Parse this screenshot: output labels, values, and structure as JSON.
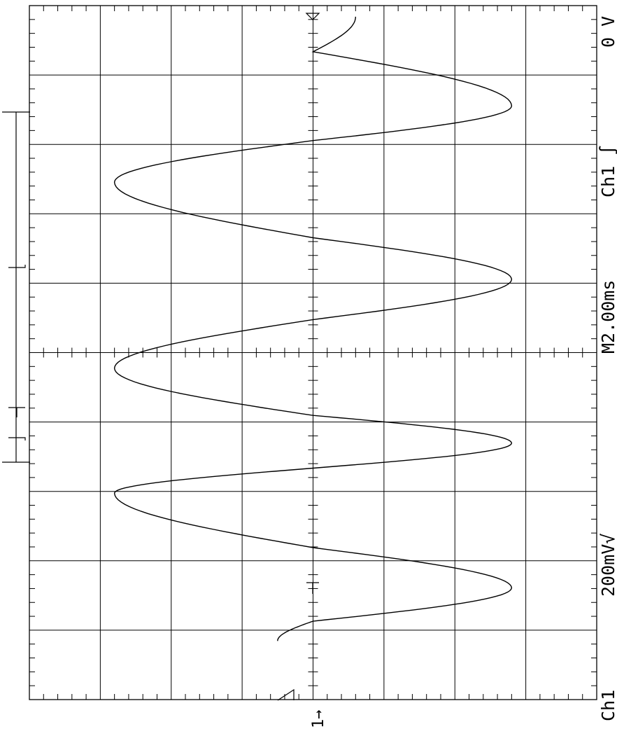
{
  "readouts": {
    "channel": "Ch1",
    "volts_per_div": "200mV√",
    "timebase": "M2.00ms",
    "trigger": "Ch1 ∫",
    "trigger_level": "0 V",
    "channel_marker": "1→"
  },
  "colors": {
    "trace": "#000000",
    "grid": "#000000",
    "background": "#ffffff"
  },
  "chart_data": {
    "type": "line",
    "title": "",
    "xlabel": "",
    "ylabel": "",
    "xlim": [
      -10,
      10
    ],
    "ylim": [
      -0.8,
      0.8
    ],
    "grid": true,
    "series": [
      {
        "x": [
          -8.31,
          -7.74,
          -6.78,
          -5.62,
          -4.05,
          -3.33,
          -2.61,
          -1.81,
          -0.45,
          0.95,
          2.11,
          3.31,
          4.91,
          6.11,
          7.11,
          8.67,
          9.68
        ],
        "y": [
          -0.1,
          0.0,
          0.56,
          0.0,
          -0.56,
          0.0,
          0.56,
          0.0,
          -0.56,
          0.0,
          0.56,
          0.0,
          -0.56,
          0.0,
          0.56,
          0.0,
          0.12
        ]
      }
    ]
  }
}
